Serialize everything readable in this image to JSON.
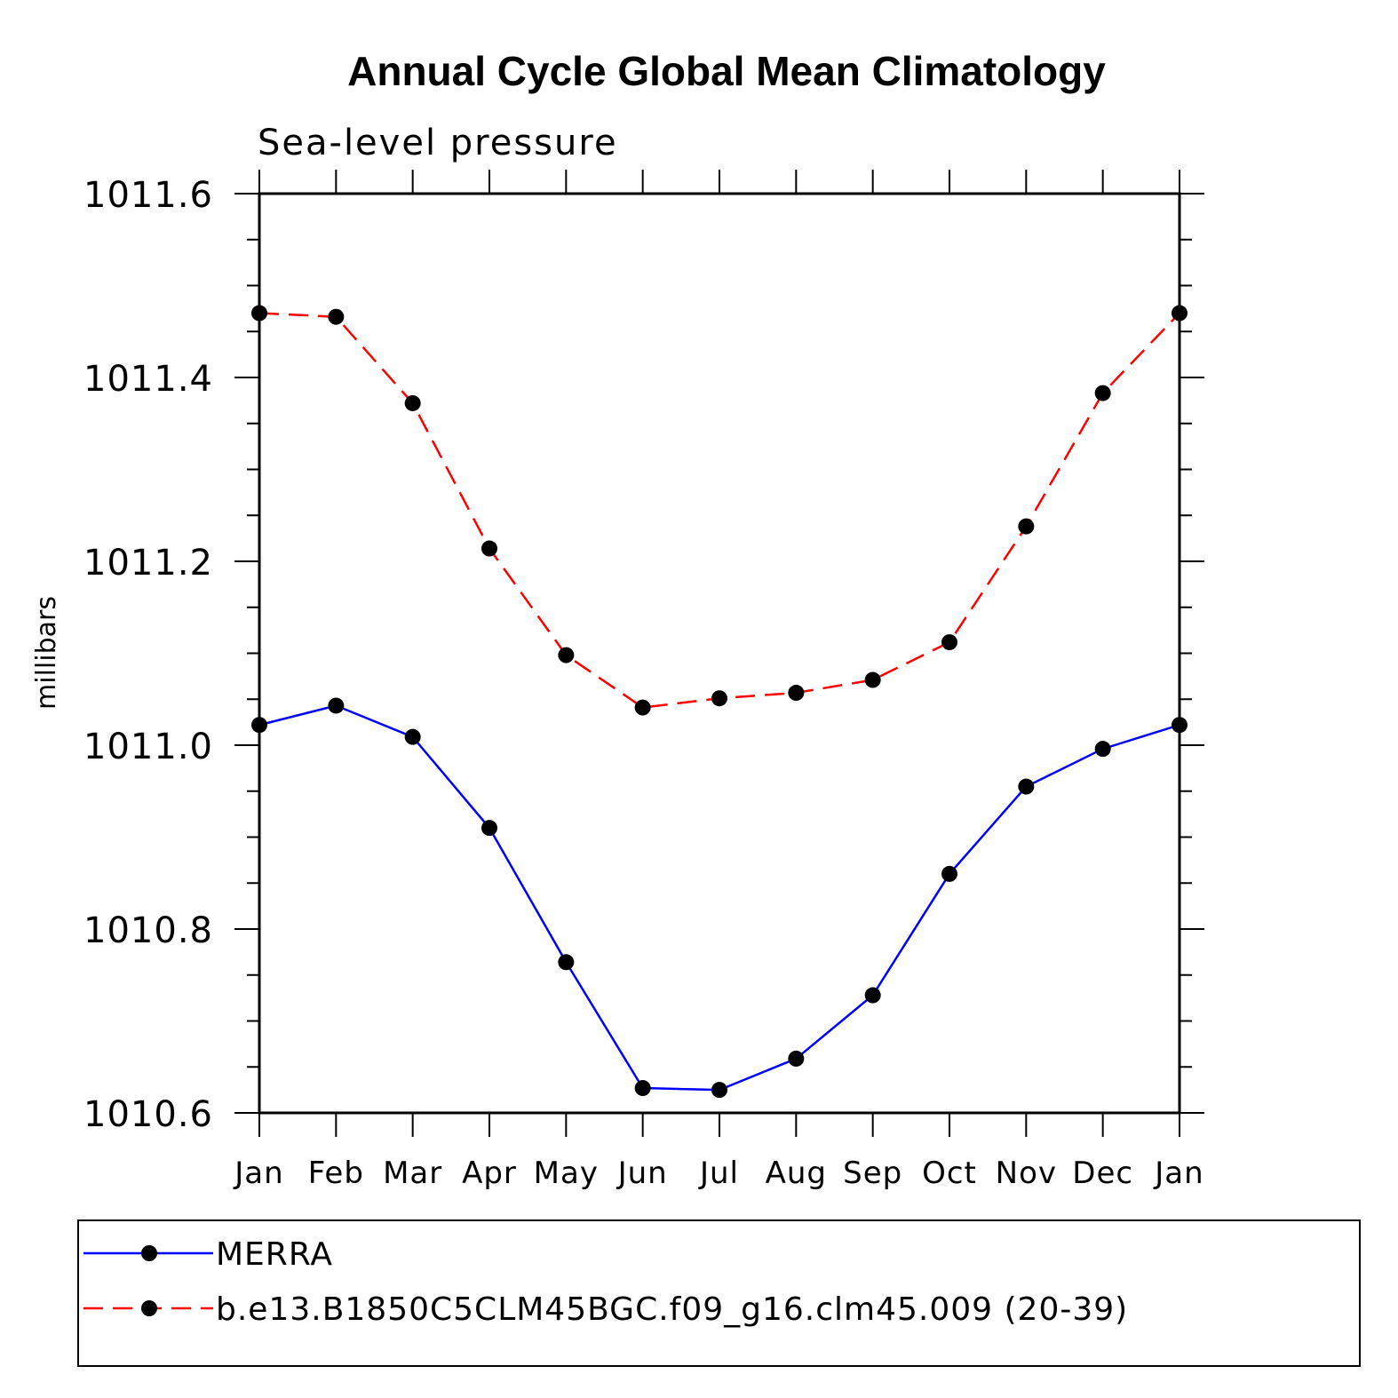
{
  "chart_data": {
    "type": "line",
    "title": "Annual Cycle Global Mean Climatology",
    "subtitle": "Sea-level pressure",
    "ylabel": "millibars",
    "xlabel": "",
    "ylim": [
      1010.6,
      1011.6
    ],
    "y_major_ticks": [
      1010.6,
      1010.8,
      1011.0,
      1011.2,
      1011.4,
      1011.6
    ],
    "y_tick_labels": [
      "1010.6",
      "1010.8",
      "1011.0",
      "1011.2",
      "1011.4",
      "1011.6"
    ],
    "y_minor_step": 0.05,
    "categories": [
      "Jan",
      "Feb",
      "Mar",
      "Apr",
      "May",
      "Jun",
      "Jul",
      "Aug",
      "Sep",
      "Oct",
      "Nov",
      "Dec",
      "Jan"
    ],
    "series": [
      {
        "name": "MERRA",
        "color": "#0000ff",
        "dash": "solid",
        "marker": "filled-circle",
        "values": [
          1011.022,
          1011.043,
          1011.009,
          1010.91,
          1010.764,
          1010.627,
          1010.625,
          1010.659,
          1010.728,
          1010.86,
          1010.955,
          1010.996,
          1011.022
        ]
      },
      {
        "name": "b.e13.B1850C5CLM45BGC.f09_g16.clm45.009 (20-39)",
        "color": "#ff0000",
        "dash": "dashed",
        "marker": "filled-circle",
        "values": [
          1011.47,
          1011.466,
          1011.372,
          1011.214,
          1011.098,
          1011.041,
          1011.051,
          1011.057,
          1011.071,
          1011.112,
          1011.238,
          1011.383,
          1011.47
        ]
      }
    ],
    "legend": {
      "placement": "bottom",
      "entries": [
        "MERRA",
        "b.e13.B1850C5CLM45BGC.f09_g16.clm45.009 (20-39)"
      ]
    },
    "grid": false
  }
}
